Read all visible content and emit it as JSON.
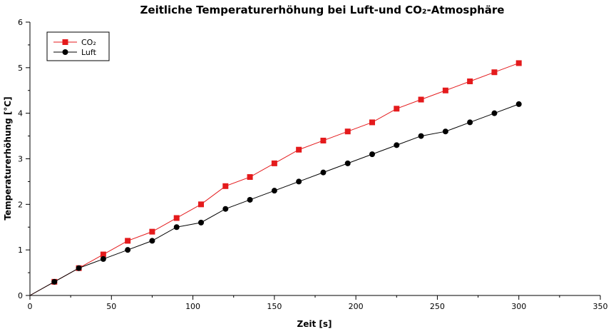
{
  "chart_data": {
    "type": "line",
    "title": "Zeitliche Temperaturerhöhung bei Luft-und CO₂-Atmosphäre",
    "xlabel": "Zeit [s]",
    "ylabel": "Temperaturerhöhung [°C]",
    "xlim": [
      0,
      350
    ],
    "ylim": [
      0,
      6
    ],
    "xticks": [
      "0",
      "50",
      "100",
      "150",
      "200",
      "250",
      "300",
      "350"
    ],
    "yticks": [
      "0",
      "1",
      "2",
      "3",
      "4",
      "5",
      "6"
    ],
    "grid": false,
    "legend_position": "top-left",
    "series": [
      {
        "name": "CO₂",
        "color": "#e41a1c",
        "marker": "square",
        "x": [
          0,
          15,
          30,
          45,
          60,
          75,
          90,
          105,
          120,
          135,
          150,
          165,
          180,
          195,
          210,
          225,
          240,
          255,
          270,
          285,
          300
        ],
        "y": [
          0,
          0.3,
          0.6,
          0.9,
          1.2,
          1.4,
          1.7,
          2.0,
          2.4,
          2.6,
          2.9,
          3.2,
          3.4,
          3.6,
          3.8,
          4.1,
          4.3,
          4.5,
          4.7,
          4.9,
          5.1
        ]
      },
      {
        "name": "Luft",
        "color": "#000000",
        "marker": "circle",
        "x": [
          0,
          15,
          30,
          45,
          60,
          75,
          90,
          105,
          120,
          135,
          150,
          165,
          180,
          195,
          210,
          225,
          240,
          255,
          270,
          285,
          300
        ],
        "y": [
          0,
          0.3,
          0.6,
          0.8,
          1.0,
          1.2,
          1.5,
          1.6,
          1.9,
          2.1,
          2.3,
          2.5,
          2.7,
          2.9,
          3.1,
          3.3,
          3.5,
          3.6,
          3.8,
          4.0,
          4.2
        ]
      }
    ]
  }
}
